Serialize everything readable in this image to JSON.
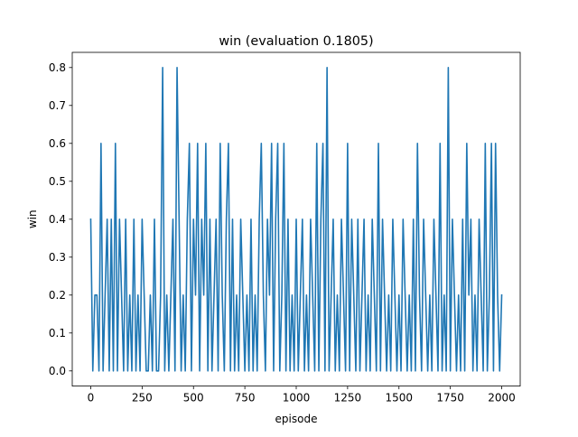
{
  "chart_data": {
    "type": "line",
    "title": "win (evaluation 0.1805)",
    "xlabel": "episode",
    "ylabel": "win",
    "xlim": [
      -90,
      2090
    ],
    "ylim": [
      -0.04,
      0.84
    ],
    "xticks": [
      0,
      250,
      500,
      750,
      1000,
      1250,
      1500,
      1750,
      2000
    ],
    "yticks": [
      0.0,
      0.1,
      0.2,
      0.3,
      0.4,
      0.5,
      0.6,
      0.7,
      0.8
    ],
    "ytick_labels": [
      "0.0",
      "0.1",
      "0.2",
      "0.3",
      "0.4",
      "0.5",
      "0.6",
      "0.7",
      "0.8"
    ],
    "grid": false,
    "series": [
      {
        "color": "#1f77b4",
        "x": [
          0,
          10,
          20,
          30,
          40,
          50,
          60,
          70,
          80,
          90,
          100,
          110,
          120,
          130,
          140,
          150,
          160,
          170,
          180,
          190,
          200,
          210,
          220,
          230,
          240,
          250,
          260,
          270,
          280,
          290,
          300,
          310,
          320,
          330,
          340,
          350,
          360,
          370,
          380,
          390,
          400,
          410,
          420,
          430,
          440,
          450,
          460,
          470,
          480,
          490,
          500,
          510,
          520,
          530,
          540,
          550,
          560,
          570,
          580,
          590,
          600,
          610,
          620,
          630,
          640,
          650,
          660,
          670,
          680,
          690,
          700,
          710,
          720,
          730,
          740,
          750,
          760,
          770,
          780,
          790,
          800,
          810,
          820,
          830,
          840,
          850,
          860,
          870,
          880,
          890,
          900,
          910,
          920,
          930,
          940,
          950,
          960,
          970,
          980,
          990,
          1000,
          1010,
          1020,
          1030,
          1040,
          1050,
          1060,
          1070,
          1080,
          1090,
          1100,
          1110,
          1120,
          1130,
          1140,
          1150,
          1160,
          1170,
          1180,
          1190,
          1200,
          1210,
          1220,
          1230,
          1240,
          1250,
          1260,
          1270,
          1280,
          1290,
          1300,
          1310,
          1320,
          1330,
          1340,
          1350,
          1360,
          1370,
          1380,
          1390,
          1400,
          1410,
          1420,
          1430,
          1440,
          1450,
          1460,
          1470,
          1480,
          1490,
          1500,
          1510,
          1520,
          1530,
          1540,
          1550,
          1560,
          1570,
          1580,
          1590,
          1600,
          1610,
          1620,
          1630,
          1640,
          1650,
          1660,
          1670,
          1680,
          1690,
          1700,
          1710,
          1720,
          1730,
          1740,
          1750,
          1760,
          1770,
          1780,
          1790,
          1800,
          1810,
          1820,
          1830,
          1840,
          1850,
          1860,
          1870,
          1880,
          1890,
          1900,
          1910,
          1920,
          1930,
          1940,
          1950,
          1960,
          1970,
          1980,
          1990,
          2000
        ],
        "y": [
          0.4,
          0.0,
          0.2,
          0.2,
          0.0,
          0.6,
          0.0,
          0.2,
          0.4,
          0.0,
          0.4,
          0.0,
          0.6,
          0.0,
          0.4,
          0.2,
          0.0,
          0.4,
          0.0,
          0.2,
          0.0,
          0.4,
          0.0,
          0.2,
          0.0,
          0.4,
          0.2,
          0.0,
          0.0,
          0.2,
          0.0,
          0.4,
          0.0,
          0.0,
          0.2,
          0.8,
          0.0,
          0.2,
          0.0,
          0.2,
          0.4,
          0.0,
          0.8,
          0.4,
          0.0,
          0.2,
          0.0,
          0.4,
          0.6,
          0.0,
          0.4,
          0.2,
          0.6,
          0.0,
          0.4,
          0.2,
          0.6,
          0.0,
          0.4,
          0.0,
          0.2,
          0.4,
          0.0,
          0.6,
          0.2,
          0.0,
          0.4,
          0.6,
          0.0,
          0.4,
          0.0,
          0.2,
          0.0,
          0.4,
          0.2,
          0.0,
          0.2,
          0.0,
          0.4,
          0.0,
          0.2,
          0.0,
          0.4,
          0.6,
          0.2,
          0.0,
          0.4,
          0.2,
          0.6,
          0.0,
          0.4,
          0.6,
          0.0,
          0.2,
          0.6,
          0.0,
          0.4,
          0.0,
          0.2,
          0.0,
          0.4,
          0.0,
          0.2,
          0.4,
          0.0,
          0.2,
          0.0,
          0.4,
          0.2,
          0.0,
          0.6,
          0.0,
          0.4,
          0.6,
          0.0,
          0.8,
          0.0,
          0.2,
          0.4,
          0.0,
          0.2,
          0.0,
          0.4,
          0.2,
          0.0,
          0.6,
          0.0,
          0.4,
          0.2,
          0.0,
          0.4,
          0.0,
          0.2,
          0.4,
          0.0,
          0.2,
          0.0,
          0.4,
          0.2,
          0.0,
          0.6,
          0.0,
          0.4,
          0.2,
          0.0,
          0.2,
          0.0,
          0.4,
          0.2,
          0.0,
          0.2,
          0.0,
          0.4,
          0.2,
          0.0,
          0.2,
          0.0,
          0.4,
          0.0,
          0.6,
          0.2,
          0.0,
          0.4,
          0.2,
          0.0,
          0.2,
          0.0,
          0.4,
          0.2,
          0.0,
          0.6,
          0.0,
          0.2,
          0.0,
          0.8,
          0.0,
          0.4,
          0.2,
          0.0,
          0.2,
          0.0,
          0.4,
          0.0,
          0.6,
          0.2,
          0.4,
          0.0,
          0.2,
          0.0,
          0.4,
          0.2,
          0.0,
          0.6,
          0.0,
          0.2,
          0.6,
          0.0,
          0.6,
          0.2,
          0.0,
          0.2
        ]
      }
    ]
  }
}
